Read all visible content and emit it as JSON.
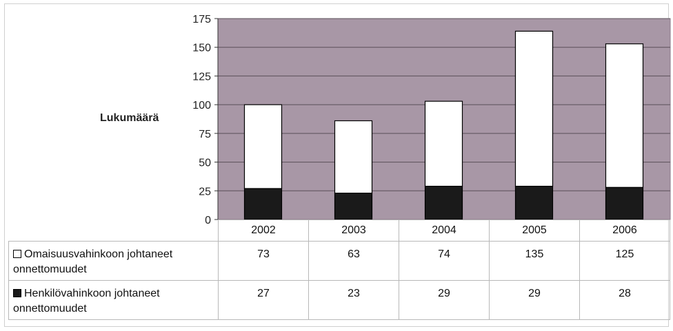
{
  "chart_data": {
    "type": "bar",
    "stacked": true,
    "categories": [
      "2002",
      "2003",
      "2004",
      "2005",
      "2006"
    ],
    "series": [
      {
        "name": "Henkilövahinkoon johtaneet onnettomuudet",
        "values": [
          27,
          23,
          29,
          29,
          28
        ],
        "color": "#1a1a1a"
      },
      {
        "name": "Omaisuusvahinkoon johtaneet onnettomuudet",
        "values": [
          73,
          63,
          74,
          135,
          125
        ],
        "color": "#ffffff"
      }
    ],
    "title": "",
    "xlabel": "",
    "ylabel": "Lukumäärä",
    "ylim": [
      0,
      175
    ],
    "yticks": [
      "0",
      "25",
      "50",
      "75",
      "100",
      "125",
      "150",
      "175"
    ],
    "grid": true,
    "plot_background": "#a897a6",
    "legend": "data-table-below"
  },
  "table": {
    "rows": [
      {
        "label": "Omaisuusvahinkoon johtaneet onnettomuudet",
        "swatch_color": "#ffffff",
        "values": [
          "73",
          "63",
          "74",
          "135",
          "125"
        ]
      },
      {
        "label": "Henkilövahinkoon johtaneet onnettomuudet",
        "swatch_color": "#1a1a1a",
        "values": [
          "27",
          "23",
          "29",
          "29",
          "28"
        ]
      }
    ]
  }
}
